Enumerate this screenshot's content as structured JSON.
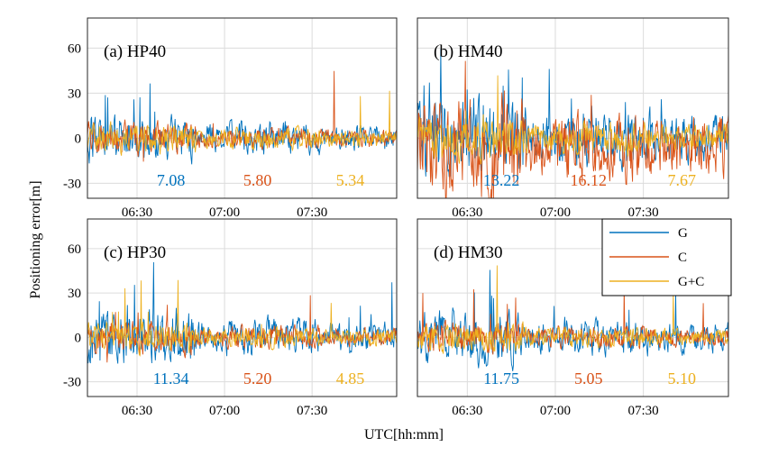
{
  "xlabel": "UTC[hh:mm]",
  "ylabel": "Positioning error[m]",
  "legend": {
    "placement": "top-right of panel (d)",
    "entries": [
      {
        "label": "G",
        "color": "#0072BD"
      },
      {
        "label": "C",
        "color": "#D95319"
      },
      {
        "label": "G+C",
        "color": "#EDB120"
      }
    ]
  },
  "chart_data": [
    {
      "type": "line",
      "title": "(a) HP40",
      "xticks": [
        "06:30",
        "07:00",
        "07:30"
      ],
      "yticks": [
        "60",
        "30",
        "0",
        "-30"
      ],
      "xlim": [
        "06:13",
        "07:59"
      ],
      "ylim": [
        -40,
        80
      ],
      "grid": true,
      "series": [
        {
          "name": "G",
          "color": "#0072BD",
          "rms": "7.08",
          "amplitude": 7,
          "offset": 0,
          "spikes": 10
        },
        {
          "name": "C",
          "color": "#D95319",
          "rms": "5.80",
          "amplitude": 5,
          "offset": 0,
          "spikes": 4
        },
        {
          "name": "G+C",
          "color": "#EDB120",
          "rms": "5.34",
          "amplitude": 4.5,
          "offset": 0,
          "spikes": 3
        }
      ]
    },
    {
      "type": "line",
      "title": "(b) HM40",
      "xticks": [
        "06:30",
        "07:00",
        "07:30"
      ],
      "yticks": [
        "60",
        "30",
        "0",
        "-30"
      ],
      "xlim": [
        "06:13",
        "07:59"
      ],
      "ylim": [
        -40,
        80
      ],
      "grid": true,
      "series": [
        {
          "name": "G",
          "color": "#0072BD",
          "rms": "13.22",
          "amplitude": 12,
          "offset": 0,
          "spikes": 18
        },
        {
          "name": "C",
          "color": "#D95319",
          "rms": "16.12",
          "amplitude": 15,
          "offset": -5,
          "spikes": 6
        },
        {
          "name": "G+C",
          "color": "#EDB120",
          "rms": "7.67",
          "amplitude": 7,
          "offset": 0,
          "spikes": 4
        }
      ]
    },
    {
      "type": "line",
      "title": "(c) HP30",
      "xticks": [
        "06:30",
        "07:00",
        "07:30"
      ],
      "yticks": [
        "60",
        "30",
        "0",
        "-30"
      ],
      "xlim": [
        "06:13",
        "07:59"
      ],
      "ylim": [
        -40,
        80
      ],
      "grid": true,
      "series": [
        {
          "name": "G",
          "color": "#0072BD",
          "rms": "11.34",
          "amplitude": 8,
          "offset": 0,
          "spikes": 16
        },
        {
          "name": "C",
          "color": "#D95319",
          "rms": "5.20",
          "amplitude": 5,
          "offset": 0,
          "spikes": 4
        },
        {
          "name": "G+C",
          "color": "#EDB120",
          "rms": "4.85",
          "amplitude": 4.5,
          "offset": 0,
          "spikes": 3
        }
      ]
    },
    {
      "type": "line",
      "title": "(d) HM30",
      "xticks": [
        "06:30",
        "07:00",
        "07:30"
      ],
      "yticks": [
        "60",
        "30",
        "0",
        "-30"
      ],
      "xlim": [
        "06:13",
        "07:59"
      ],
      "ylim": [
        -40,
        80
      ],
      "grid": true,
      "series": [
        {
          "name": "G",
          "color": "#0072BD",
          "rms": "11.75",
          "amplitude": 8,
          "offset": 0,
          "spikes": 16
        },
        {
          "name": "C",
          "color": "#D95319",
          "rms": "5.05",
          "amplitude": 5,
          "offset": 0,
          "spikes": 4
        },
        {
          "name": "G+C",
          "color": "#EDB120",
          "rms": "5.10",
          "amplitude": 4.5,
          "offset": 0,
          "spikes": 3
        }
      ]
    }
  ]
}
